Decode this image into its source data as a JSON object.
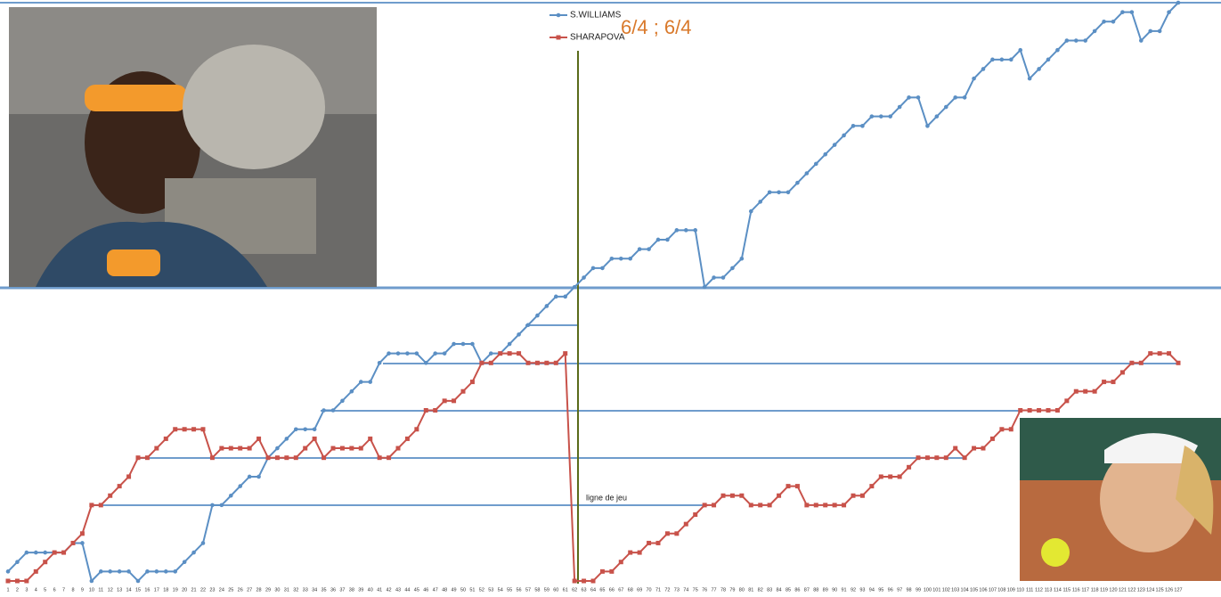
{
  "chart_data": {
    "type": "line",
    "annotations": [
      "6/4 ; 6/4",
      "ligne de jeu"
    ],
    "categories": [
      1,
      2,
      3,
      4,
      5,
      6,
      7,
      8,
      9,
      10,
      11,
      12,
      13,
      14,
      15,
      16,
      17,
      18,
      19,
      20,
      21,
      22,
      23,
      24,
      25,
      26,
      27,
      28,
      29,
      30,
      31,
      32,
      33,
      34,
      35,
      36,
      37,
      38,
      39,
      40,
      41,
      42,
      43,
      44,
      45,
      46,
      47,
      48,
      49,
      50,
      51,
      52,
      53,
      54,
      55,
      56,
      57,
      58,
      59,
      60,
      61,
      62,
      63,
      64,
      65,
      66,
      67,
      68,
      69,
      70,
      71,
      72,
      73,
      74,
      75,
      76,
      77,
      78,
      79,
      80,
      81,
      82,
      83,
      84,
      85,
      86,
      87,
      88,
      89,
      90,
      91,
      92,
      93,
      94,
      95,
      96,
      97,
      98,
      99,
      100,
      101,
      102,
      103,
      104,
      105,
      106,
      107,
      108,
      109,
      110,
      111,
      112,
      113,
      114,
      115,
      116,
      117,
      118,
      119,
      120,
      121,
      122,
      123,
      124,
      125,
      126,
      127
    ],
    "ylim": [
      0,
      61
    ],
    "series": [
      {
        "name": "S.WILLIAMS",
        "color": "#5b8fc4",
        "marker": "circle",
        "values": [
          1,
          2,
          3,
          3,
          3,
          3,
          3,
          4,
          4,
          0,
          1,
          1,
          1,
          1,
          0,
          1,
          1,
          1,
          1,
          2,
          3,
          4,
          8,
          8,
          9,
          10,
          11,
          11,
          13,
          14,
          15,
          16,
          16,
          16,
          18,
          18,
          19,
          20,
          21,
          21,
          23,
          24,
          24,
          24,
          24,
          23,
          24,
          24,
          25,
          25,
          25,
          23,
          24,
          24,
          25,
          26,
          27,
          28,
          29,
          30,
          30,
          31,
          32,
          33,
          33,
          34,
          34,
          34,
          35,
          35,
          36,
          36,
          37,
          37,
          37,
          31,
          32,
          32,
          33,
          34,
          39,
          40,
          41,
          41,
          41,
          42,
          43,
          44,
          45,
          46,
          47,
          48,
          48,
          49,
          49,
          49,
          50,
          51,
          51,
          48,
          49,
          50,
          51,
          51,
          53,
          54,
          55,
          55,
          55,
          56,
          53,
          54,
          55,
          56,
          57,
          57,
          57,
          58,
          59,
          59,
          60,
          60,
          57,
          58,
          58,
          60,
          61
        ]
      },
      {
        "name": "SHARAPOVA",
        "color": "#c8524a",
        "marker": "square",
        "values": [
          0,
          0,
          0,
          1,
          2,
          3,
          3,
          4,
          5,
          8,
          8,
          9,
          10,
          11,
          13,
          13,
          14,
          15,
          16,
          16,
          16,
          16,
          13,
          14,
          14,
          14,
          14,
          15,
          13,
          13,
          13,
          13,
          14,
          15,
          13,
          14,
          14,
          14,
          14,
          15,
          13,
          13,
          14,
          15,
          16,
          18,
          18,
          19,
          19,
          20,
          21,
          23,
          23,
          24,
          24,
          24,
          23,
          23,
          23,
          23,
          24,
          0,
          0,
          0,
          1,
          1,
          2,
          3,
          3,
          4,
          4,
          5,
          5,
          6,
          7,
          8,
          8,
          9,
          9,
          9,
          8,
          8,
          8,
          9,
          10,
          10,
          8,
          8,
          8,
          8,
          8,
          9,
          9,
          10,
          11,
          11,
          11,
          12,
          13,
          13,
          13,
          13,
          14,
          13,
          14,
          14,
          15,
          16,
          16,
          18,
          18,
          18,
          18,
          18,
          19,
          20,
          20,
          20,
          21,
          21,
          22,
          23,
          23,
          24,
          24,
          24,
          23
        ]
      }
    ]
  }
}
